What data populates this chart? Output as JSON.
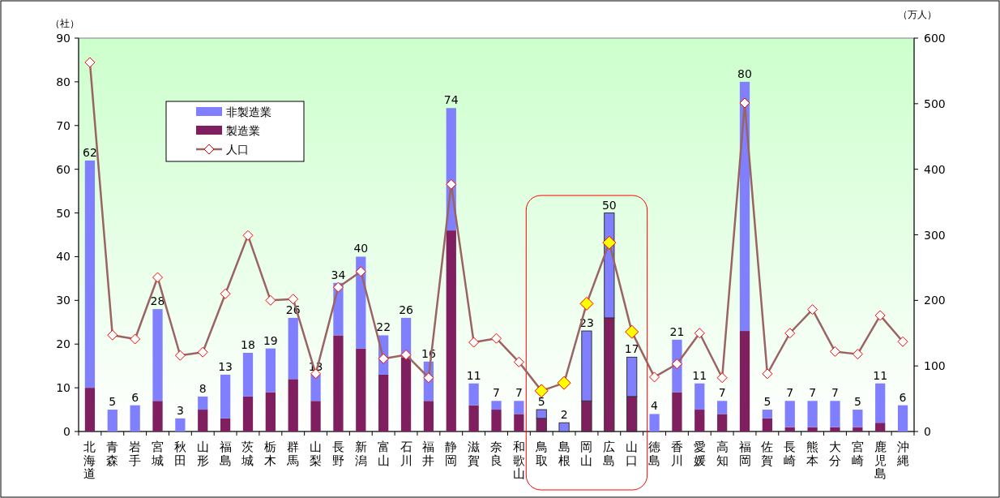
{
  "chart_data": {
    "type": "bar",
    "stacked": true,
    "ylabel": "（社）",
    "y2label": "（万人）",
    "categories": [
      "北海道",
      "青森",
      "岩手",
      "宮城",
      "秋田",
      "山形",
      "福島",
      "茨城",
      "栃木",
      "群馬",
      "山梨",
      "長野",
      "新潟",
      "富山",
      "石川",
      "福井",
      "静岡",
      "滋賀",
      "奈良",
      "和歌山",
      "鳥取",
      "島根",
      "岡山",
      "広島",
      "山口",
      "徳島",
      "香川",
      "愛媛",
      "高知",
      "福岡",
      "佐賀",
      "長崎",
      "熊本",
      "大分",
      "宮崎",
      "鹿児島",
      "沖縄"
    ],
    "series": [
      {
        "name": "製造業",
        "color": "#801f5f",
        "values": [
          10,
          0,
          0,
          7,
          0,
          5,
          3,
          8,
          9,
          12,
          7,
          22,
          19,
          13,
          17,
          7,
          46,
          6,
          5,
          4,
          3,
          0,
          7,
          26,
          8,
          0,
          9,
          5,
          4,
          23,
          3,
          1,
          1,
          1,
          1,
          2,
          0
        ]
      },
      {
        "name": "非製造業",
        "color": "#8080ff",
        "values": [
          52,
          5,
          6,
          21,
          3,
          3,
          10,
          10,
          10,
          14,
          6,
          12,
          21,
          9,
          9,
          9,
          28,
          5,
          2,
          3,
          2,
          2,
          16,
          24,
          9,
          4,
          12,
          6,
          3,
          57,
          2,
          6,
          6,
          6,
          4,
          9,
          6
        ]
      },
      {
        "name": "人口",
        "type": "line",
        "axis": "y2",
        "color": "#9a6464",
        "marker": "diamond",
        "colors": [
          "#ffffff",
          "#ffffff",
          "#ffffff",
          "#ffffff",
          "#ffffff",
          "#ffffff",
          "#ffffff",
          "#ffffff",
          "#ffffff",
          "#ffffff",
          "#ffffff",
          "#ffffff",
          "#ffffff",
          "#ffffff",
          "#ffffff",
          "#ffffff",
          "#ffffff",
          "#ffffff",
          "#ffffff",
          "#ffffff",
          "#ffff00",
          "#ffff00",
          "#ffff00",
          "#ffff00",
          "#ffff00",
          "#ffffff",
          "#ffffff",
          "#ffffff",
          "#ffffff",
          "#ffffff",
          "#ffffff",
          "#ffffff",
          "#ffffff",
          "#ffffff",
          "#ffffff",
          "#ffffff",
          "#ffffff"
        ],
        "values": [
          563,
          147,
          141,
          235,
          116,
          121,
          210,
          299,
          200,
          202,
          88,
          220,
          244,
          111,
          117,
          82,
          377,
          136,
          142,
          106,
          62,
          74,
          195,
          288,
          152,
          83,
          103,
          150,
          82,
          501,
          88,
          150,
          186,
          122,
          118,
          177,
          137
        ]
      }
    ],
    "totals": [
      "62",
      "5",
      "6",
      "28",
      "3",
      "8",
      "13",
      "18",
      "19",
      "26",
      "13",
      "34",
      "40",
      "22",
      "26",
      "16",
      "74",
      "11",
      "7",
      "7",
      "5",
      "2",
      "23",
      "50",
      "17",
      "4",
      "21",
      "11",
      "7",
      "80",
      "5",
      "7",
      "7",
      "7",
      "5",
      "11",
      "6"
    ],
    "ylim": [
      0,
      90
    ],
    "yticks": [
      0,
      10,
      20,
      30,
      40,
      50,
      60,
      70,
      80,
      90
    ],
    "y2lim": [
      0,
      600
    ],
    "y2ticks": [
      0,
      100,
      200,
      300,
      400,
      500,
      600
    ],
    "legend": "top left"
  }
}
